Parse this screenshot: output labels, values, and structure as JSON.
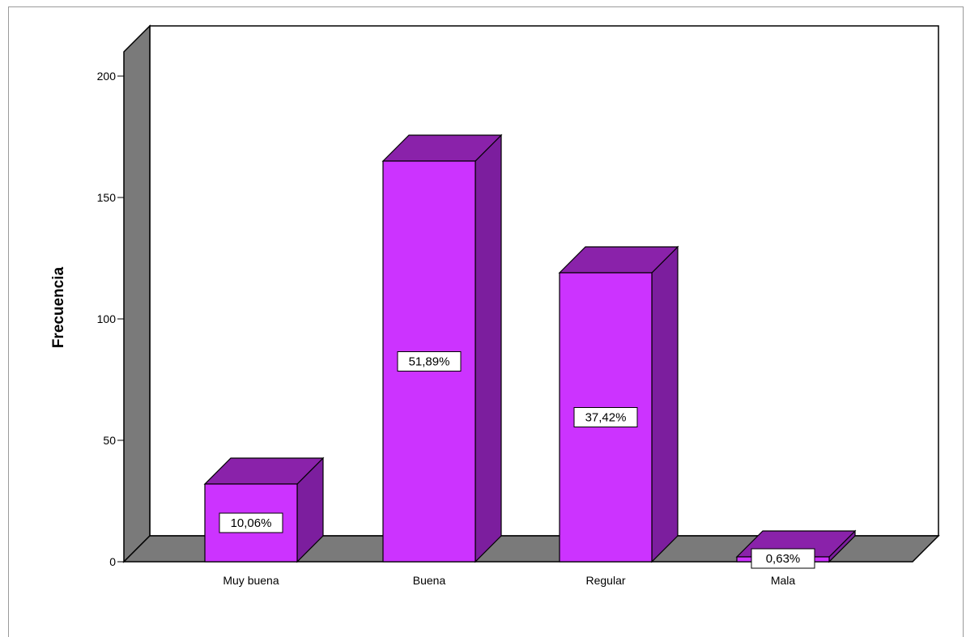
{
  "chart_data": {
    "type": "bar",
    "categories": [
      "Muy buena",
      "Buena",
      "Regular",
      "Mala"
    ],
    "values": [
      32,
      165,
      119,
      2
    ],
    "data_labels": [
      "10,06%",
      "51,89%",
      "37,42%",
      "0,63%"
    ],
    "title": "",
    "xlabel": "",
    "ylabel": "Frecuencia",
    "ylim": [
      0,
      200
    ],
    "yticks": [
      0,
      50,
      100,
      150,
      200
    ],
    "grid": false,
    "legend": "none",
    "style": "3d",
    "colors": {
      "bar_front": "#cc33ff",
      "bar_side": "#7c1e9e",
      "bar_top": "#8a22aa",
      "wall": "#7a7a7a",
      "floor": "#7a7a7a"
    }
  }
}
